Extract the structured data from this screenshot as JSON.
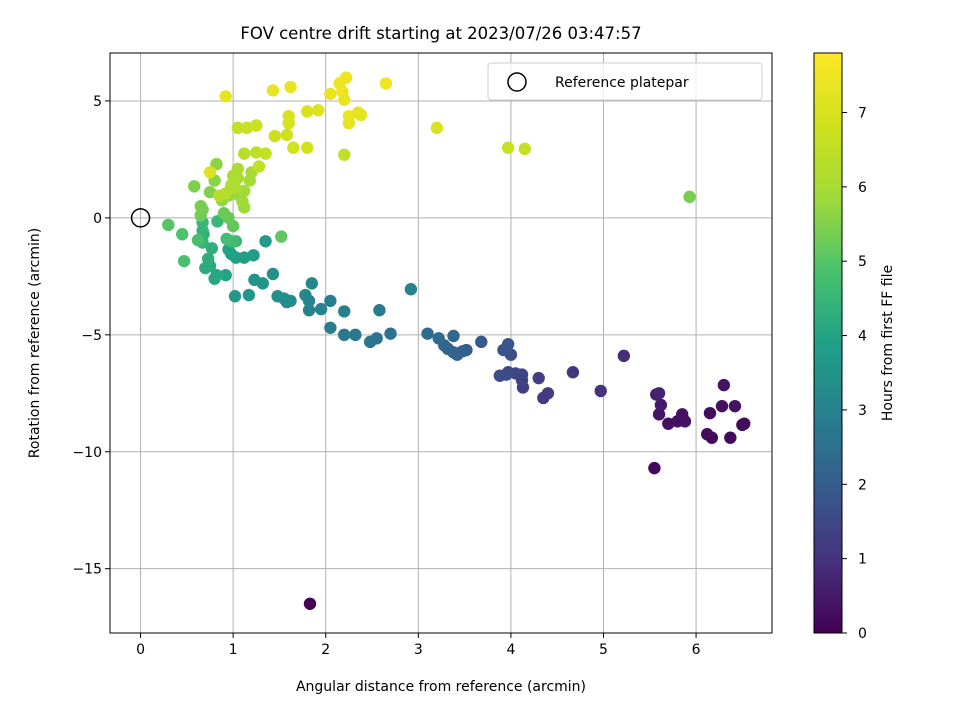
{
  "chart_data": {
    "type": "scatter",
    "title": "FOV centre drift starting at 2023/07/26 03:47:57",
    "xlabel": "Angular distance from reference (arcmin)",
    "ylabel": "Rotation from reference (arcmin)",
    "xlim": [
      -0.33,
      6.82
    ],
    "ylim": [
      -17.75,
      7.05
    ],
    "xticks": [
      0,
      1,
      2,
      3,
      4,
      5,
      6
    ],
    "yticks": [
      -15,
      -10,
      -5,
      0,
      5
    ],
    "ytick_labels": [
      "−15",
      "−10",
      "−5",
      "0",
      "5"
    ],
    "grid": true,
    "colormap": "viridis",
    "colorbar": {
      "label": "Hours from first FF file",
      "range": [
        0,
        7.8
      ],
      "ticks": [
        0,
        1,
        2,
        3,
        4,
        5,
        6,
        7
      ]
    },
    "legend": {
      "placement": "top-right",
      "entries": [
        {
          "label": "Reference platepar",
          "marker": "hollow-circle",
          "x": 0,
          "y": 0
        }
      ]
    },
    "points": [
      [
        1.83,
        -16.5,
        0.05
      ],
      [
        5.55,
        -10.7,
        0.15
      ],
      [
        6.17,
        -9.4,
        0.1
      ],
      [
        6.12,
        -9.25,
        0.2
      ],
      [
        6.37,
        -9.4,
        0.15
      ],
      [
        6.5,
        -8.85,
        0.1
      ],
      [
        6.52,
        -8.8,
        0.2
      ],
      [
        5.7,
        -8.8,
        0.3
      ],
      [
        5.8,
        -8.7,
        0.25
      ],
      [
        5.88,
        -8.7,
        0.35
      ],
      [
        5.85,
        -8.4,
        0.3
      ],
      [
        5.6,
        -8.4,
        0.4
      ],
      [
        6.15,
        -8.35,
        0.2
      ],
      [
        6.28,
        -8.05,
        0.3
      ],
      [
        6.42,
        -8.05,
        0.35
      ],
      [
        6.3,
        -7.15,
        0.4
      ],
      [
        5.62,
        -8.0,
        0.5
      ],
      [
        5.57,
        -7.55,
        0.6
      ],
      [
        5.6,
        -7.5,
        0.7
      ],
      [
        4.97,
        -7.4,
        1.0
      ],
      [
        4.4,
        -7.5,
        1.2
      ],
      [
        4.35,
        -7.7,
        1.15
      ],
      [
        4.13,
        -7.25,
        1.3
      ],
      [
        4.12,
        -6.95,
        1.35
      ],
      [
        4.3,
        -6.85,
        1.25
      ],
      [
        4.67,
        -6.6,
        1.1
      ],
      [
        5.22,
        -5.9,
        0.9
      ],
      [
        4.12,
        -6.7,
        1.4
      ],
      [
        4.05,
        -6.65,
        1.45
      ],
      [
        3.97,
        -6.6,
        1.5
      ],
      [
        3.95,
        -6.7,
        1.55
      ],
      [
        3.88,
        -6.75,
        1.6
      ],
      [
        4.0,
        -5.85,
        1.65
      ],
      [
        3.95,
        -5.6,
        1.7
      ],
      [
        3.92,
        -5.65,
        1.75
      ],
      [
        3.97,
        -5.4,
        1.8
      ],
      [
        3.68,
        -5.3,
        1.9
      ],
      [
        3.52,
        -5.65,
        2.0
      ],
      [
        3.48,
        -5.7,
        2.05
      ],
      [
        3.42,
        -5.85,
        2.1
      ],
      [
        3.38,
        -5.75,
        2.15
      ],
      [
        3.32,
        -5.6,
        2.2
      ],
      [
        3.28,
        -5.45,
        2.25
      ],
      [
        3.38,
        -5.05,
        2.3
      ],
      [
        3.22,
        -5.15,
        2.35
      ],
      [
        3.1,
        -4.95,
        2.4
      ],
      [
        2.7,
        -4.95,
        2.55
      ],
      [
        2.55,
        -5.15,
        2.6
      ],
      [
        2.48,
        -5.3,
        2.65
      ],
      [
        2.32,
        -5.0,
        2.7
      ],
      [
        2.2,
        -5.0,
        2.75
      ],
      [
        2.05,
        -4.7,
        2.8
      ],
      [
        2.58,
        -3.95,
        2.85
      ],
      [
        2.92,
        -3.05,
        3.0
      ],
      [
        2.2,
        -4.0,
        2.9
      ],
      [
        2.05,
        -3.55,
        2.95
      ],
      [
        1.95,
        -3.9,
        3.0
      ],
      [
        1.82,
        -3.95,
        3.05
      ],
      [
        1.82,
        -3.55,
        3.1
      ],
      [
        1.78,
        -3.3,
        3.15
      ],
      [
        1.85,
        -2.8,
        3.2
      ],
      [
        1.62,
        -3.55,
        3.25
      ],
      [
        1.58,
        -3.6,
        3.3
      ],
      [
        1.55,
        -3.45,
        3.35
      ],
      [
        1.48,
        -3.35,
        3.4
      ],
      [
        1.43,
        -2.4,
        3.45
      ],
      [
        1.32,
        -2.8,
        3.5
      ],
      [
        1.23,
        -2.65,
        3.55
      ],
      [
        1.17,
        -3.3,
        3.6
      ],
      [
        1.02,
        -3.35,
        3.65
      ],
      [
        1.35,
        -1.0,
        3.7
      ],
      [
        1.22,
        -1.6,
        3.75
      ],
      [
        1.12,
        -1.7,
        3.8
      ],
      [
        1.03,
        -1.7,
        3.85
      ],
      [
        0.98,
        -1.55,
        3.9
      ],
      [
        0.95,
        -1.35,
        3.95
      ],
      [
        0.92,
        -2.45,
        4.0
      ],
      [
        0.82,
        -2.45,
        4.05
      ],
      [
        0.8,
        -2.6,
        4.1
      ],
      [
        0.75,
        -2.05,
        4.15
      ],
      [
        0.7,
        -2.15,
        4.2
      ],
      [
        0.73,
        -1.75,
        4.25
      ],
      [
        0.77,
        -1.3,
        4.3
      ],
      [
        0.68,
        -0.7,
        4.35
      ],
      [
        0.67,
        -1.05,
        4.4
      ],
      [
        0.67,
        -0.55,
        4.45
      ],
      [
        0.67,
        -0.2,
        4.5
      ],
      [
        0.83,
        -0.15,
        4.55
      ],
      [
        1.03,
        -1.0,
        4.6
      ],
      [
        0.98,
        -1.0,
        4.7
      ],
      [
        0.93,
        -0.9,
        4.75
      ],
      [
        0.62,
        -0.95,
        4.8
      ],
      [
        0.47,
        -1.85,
        4.85
      ],
      [
        0.45,
        -0.7,
        4.9
      ],
      [
        0.3,
        -0.3,
        5.0
      ],
      [
        1.52,
        -0.8,
        5.1
      ],
      [
        1.0,
        -0.35,
        5.15
      ],
      [
        0.95,
        0.0,
        5.2
      ],
      [
        0.9,
        0.2,
        5.25
      ],
      [
        0.65,
        0.1,
        5.3
      ],
      [
        0.67,
        0.35,
        5.35
      ],
      [
        0.65,
        0.5,
        5.4
      ],
      [
        0.58,
        1.35,
        5.45
      ],
      [
        0.75,
        1.1,
        5.5
      ],
      [
        0.8,
        1.6,
        5.55
      ],
      [
        0.82,
        2.3,
        5.6
      ],
      [
        0.88,
        0.75,
        5.65
      ],
      [
        0.95,
        0.95,
        5.7
      ],
      [
        1.05,
        1.0,
        5.75
      ],
      [
        1.12,
        0.45,
        5.8
      ],
      [
        1.1,
        0.7,
        5.85
      ],
      [
        1.12,
        1.15,
        5.9
      ],
      [
        1.18,
        1.6,
        5.95
      ],
      [
        1.2,
        1.95,
        6.0
      ],
      [
        1.0,
        1.8,
        6.05
      ],
      [
        1.05,
        1.7,
        6.1
      ],
      [
        1.02,
        1.3,
        6.2
      ],
      [
        0.92,
        1.05,
        6.25
      ],
      [
        0.85,
        0.95,
        6.3
      ],
      [
        1.12,
        2.75,
        6.35
      ],
      [
        1.25,
        2.8,
        6.4
      ],
      [
        1.28,
        2.2,
        6.5
      ],
      [
        1.35,
        2.75,
        6.55
      ],
      [
        1.05,
        3.85,
        6.6
      ],
      [
        1.15,
        3.85,
        6.65
      ],
      [
        1.25,
        3.95,
        6.7
      ],
      [
        1.45,
        3.5,
        6.75
      ],
      [
        1.58,
        3.55,
        6.8
      ],
      [
        1.65,
        3.0,
        6.85
      ],
      [
        1.8,
        3.0,
        6.9
      ],
      [
        1.6,
        4.05,
        6.95
      ],
      [
        1.6,
        4.35,
        7.0
      ],
      [
        1.8,
        4.55,
        7.05
      ],
      [
        1.92,
        4.6,
        7.1
      ],
      [
        2.2,
        2.7,
        6.5
      ],
      [
        1.05,
        2.1,
        6.1
      ],
      [
        0.98,
        1.4,
        6.15
      ],
      [
        0.75,
        1.95,
        7.15
      ],
      [
        0.92,
        5.2,
        7.25
      ],
      [
        1.43,
        5.45,
        7.3
      ],
      [
        1.62,
        5.6,
        7.35
      ],
      [
        2.05,
        5.3,
        7.4
      ],
      [
        2.15,
        5.75,
        7.45
      ],
      [
        2.22,
        6.0,
        7.5
      ],
      [
        2.18,
        5.4,
        7.45
      ],
      [
        2.2,
        5.05,
        7.35
      ],
      [
        2.25,
        4.35,
        7.4
      ],
      [
        2.25,
        4.05,
        7.3
      ],
      [
        2.35,
        4.5,
        7.3
      ],
      [
        2.38,
        4.4,
        7.25
      ],
      [
        2.65,
        5.75,
        7.5
      ],
      [
        3.2,
        3.85,
        7.0
      ],
      [
        3.97,
        3.0,
        6.7
      ],
      [
        4.15,
        2.95,
        6.6
      ],
      [
        5.93,
        0.9,
        5.4
      ]
    ]
  }
}
